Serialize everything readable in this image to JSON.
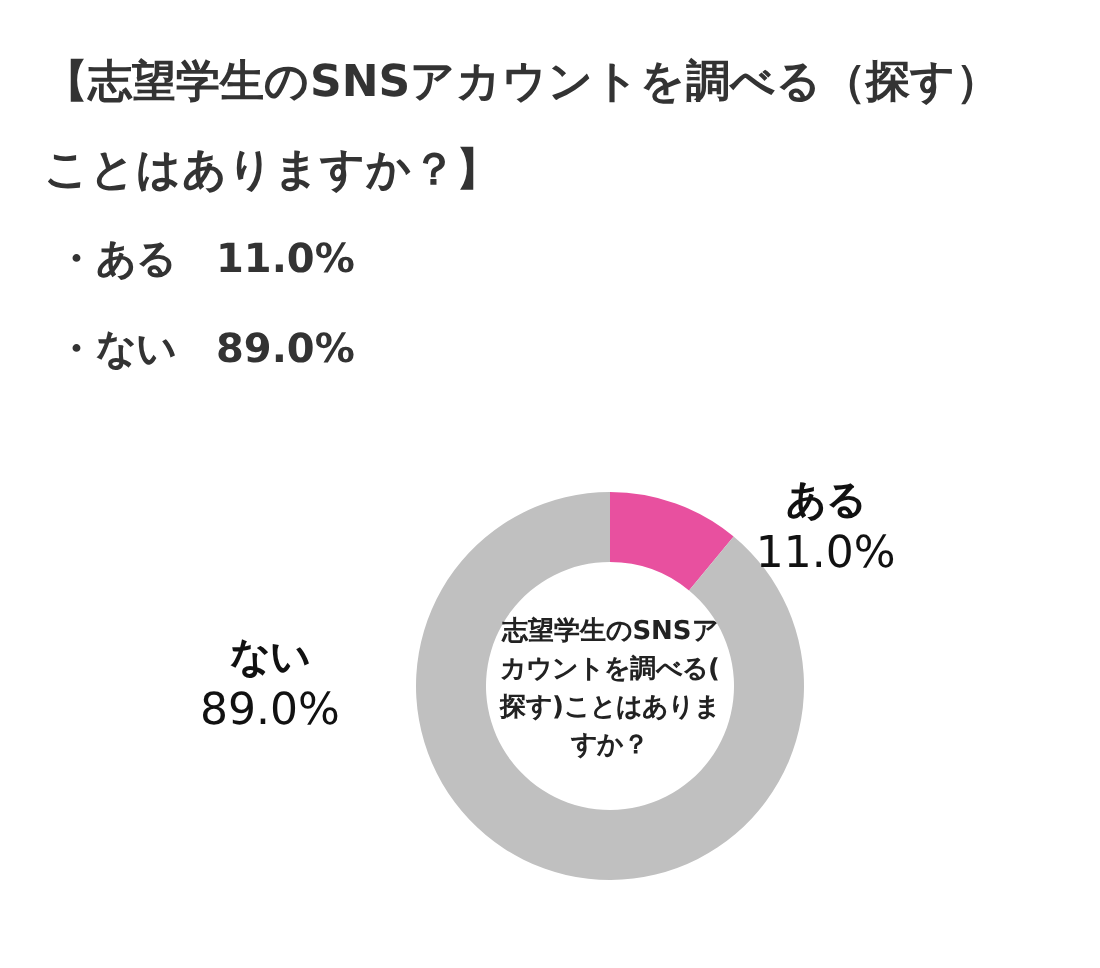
{
  "chart_data": {
    "type": "donut",
    "title": "【志望学生のSNSアカウントを調べる（探す）ことはありますか？】",
    "categories": [
      "ある",
      "ない"
    ],
    "values": [
      11.0,
      89.0
    ],
    "colors": [
      "#e8509f",
      "#c0c0c0"
    ],
    "value_labels": [
      "11.0%",
      "89.0%"
    ],
    "legend": false,
    "annotations": [
      "・ある　11.0%",
      "・ない　89.0%",
      "志望学生のSNSアカウントを調べる(探す)ことはありますか？"
    ]
  }
}
